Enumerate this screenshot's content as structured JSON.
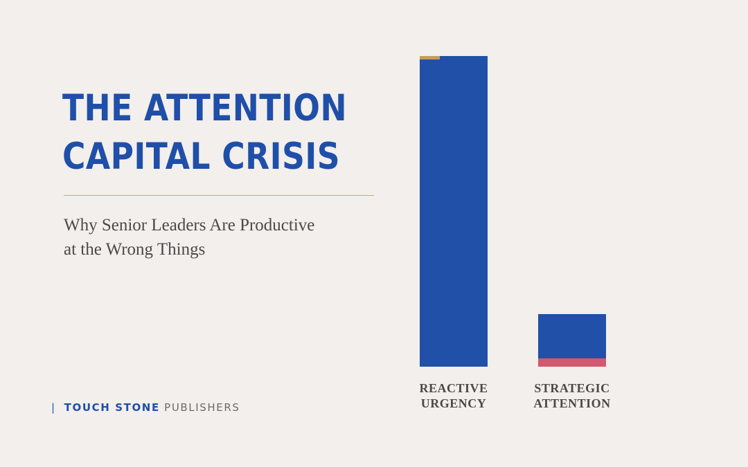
{
  "title": {
    "line1": "THE ATTENTION",
    "line2": "CAPITAL CRISIS"
  },
  "subtitle": {
    "line1": "Why Senior Leaders Are Productive",
    "line2": "at the Wrong Things"
  },
  "publisher": {
    "divider": "|",
    "brand": "TOUCH STONE",
    "suffix": "PUBLISHERS"
  },
  "colors": {
    "background": "#f2efec",
    "title": "#1f4fa8",
    "bar_main": "#2150a8",
    "reactive_accent": "#c89a5e",
    "strategic_accent": "#d2596f",
    "rule": "#d9a56a"
  },
  "chart_data": {
    "type": "bar",
    "stacked": true,
    "categories": [
      "REACTIVE URGENCY",
      "STRATEGIC ATTENTION"
    ],
    "category_lines": [
      [
        "REACTIVE",
        "URGENCY"
      ],
      [
        "STRATEGIC",
        "ATTENTION"
      ]
    ],
    "series": [
      {
        "values": [
          97.5,
          14
        ],
        "color": "#2150a8"
      },
      {
        "values": [
          1.2,
          2.6
        ],
        "colors": [
          "#c89a5e",
          "#d2596f"
        ]
      }
    ],
    "ylim": [
      0,
      100
    ],
    "grid": false,
    "legend": "none"
  }
}
